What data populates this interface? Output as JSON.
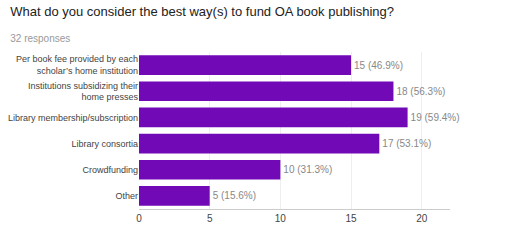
{
  "chart_data": {
    "type": "bar",
    "orientation": "horizontal",
    "title": "What do you consider the best way(s) to fund OA book publishing?",
    "subtitle": "32 responses",
    "categories": [
      "Other",
      "Crowdfunding",
      "Library consortia",
      "Library membership/subscription",
      "Institutions subsidizing their\nhome presses",
      "Per book fee provided by each\nscholar’s home institution"
    ],
    "values": [
      5,
      10,
      17,
      19,
      18,
      15
    ],
    "value_labels": [
      "5 (15.6%)",
      "10 (31.3%)",
      "17 (53.1%)",
      "19 (59.4%)",
      "18 (56.3%)",
      "15 (46.9%)"
    ],
    "data_labels": true,
    "color": "#7209B7",
    "xlim": [
      0,
      22
    ],
    "xticks": [
      0,
      5,
      10,
      15,
      20
    ],
    "grid": true
  }
}
